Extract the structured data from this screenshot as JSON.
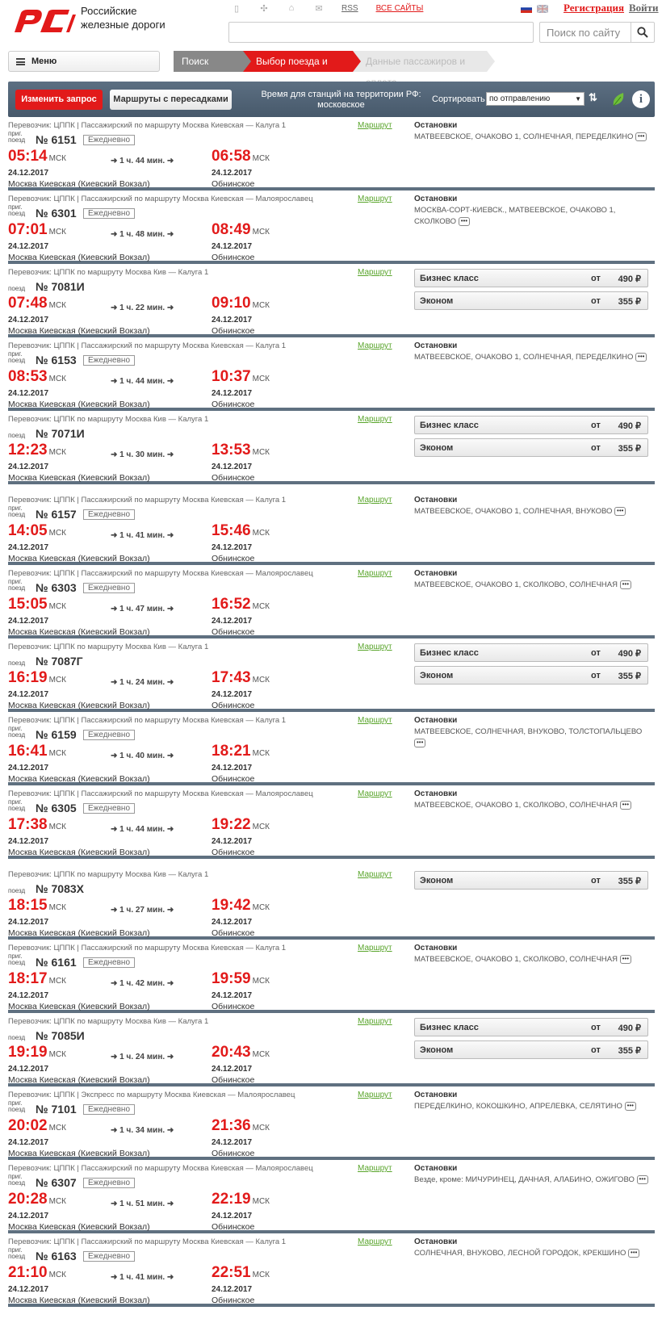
{
  "brand": {
    "line1": "Российские",
    "line2": "железные дороги"
  },
  "top": {
    "rss": "RSS",
    "all_sites": "ВСЕ САЙТЫ",
    "register": "Регистрация",
    "login": "Войти",
    "search_placeholder": "Поиск по сайту"
  },
  "menu": {
    "label": "Меню"
  },
  "steps": {
    "s1": "Поиск билета",
    "s2": "Выбор поезда и места",
    "s3": "Данные пассажиров и оплата"
  },
  "toolbar": {
    "change": "Изменить запрос",
    "transfers": "Маршруты с пересадками",
    "time_note": "Время для станций на территории РФ: московское",
    "sort_label": "Сортировать",
    "sort_value": "по отправлению"
  },
  "common": {
    "route_link": "Маршрут",
    "msk": "МСК",
    "daily": "Ежедневно",
    "stops": "Остановки",
    "from": "от",
    "prig": "приг.",
    "poezd": "поезд",
    "from_station": "Москва Киевская (Киевский Вокзал)",
    "to_station": "Обнинское",
    "date": "24.12.2017"
  },
  "trains": [
    {
      "carrier": "Перевозчик: ЦППК | Пассажирский   по маршруту Москва Киевская — Калуга 1",
      "num": "№ 6151",
      "prig": true,
      "daily": true,
      "dep": "05:14",
      "arr": "06:58",
      "dur": "1 ч. 44 мин.",
      "stops": "МАТВЕЕВСКОЕ, ОЧАКОВО 1, СОЛНЕЧНАЯ, ПЕРЕДЕЛКИНО"
    },
    {
      "carrier": "Перевозчик: ЦППК | Пассажирский   по маршруту Москва Киевская — Малоярославец",
      "num": "№ 6301",
      "prig": true,
      "daily": true,
      "dep": "07:01",
      "arr": "08:49",
      "dur": "1 ч. 48 мин.",
      "stops": "МОСКВА-СОРТ-КИЕВСК., МАТВЕЕВСКОЕ, ОЧАКОВО 1, СКОЛКОВО"
    },
    {
      "carrier": "Перевозчик: ЦППК   по маршруту Москва Кив — Калуга 1",
      "num": "№ 7081И",
      "prig": false,
      "daily": false,
      "dep": "07:48",
      "arr": "09:10",
      "dur": "1 ч. 22 мин.",
      "classes": [
        {
          "name": "Бизнес класс",
          "price": "490 ₽"
        },
        {
          "name": "Эконом",
          "price": "355 ₽"
        }
      ]
    },
    {
      "carrier": "Перевозчик: ЦППК | Пассажирский   по маршруту Москва Киевская — Калуга 1",
      "num": "№ 6153",
      "prig": true,
      "daily": true,
      "dep": "08:53",
      "arr": "10:37",
      "dur": "1 ч. 44 мин.",
      "stops": "МАТВЕЕВСКОЕ, ОЧАКОВО 1, СОЛНЕЧНАЯ, ПЕРЕДЕЛКИНО"
    },
    {
      "carrier": "Перевозчик: ЦППК   по маршруту Москва Кив — Калуга 1",
      "num": "№ 7071И",
      "prig": false,
      "daily": false,
      "dep": "12:23",
      "arr": "13:53",
      "dur": "1 ч. 30 мин.",
      "classes": [
        {
          "name": "Бизнес класс",
          "price": "490 ₽"
        },
        {
          "name": "Эконом",
          "price": "355 ₽"
        }
      ]
    },
    {
      "carrier": "Перевозчик: ЦППК | Пассажирский   по маршруту Москва Киевская — Калуга 1",
      "num": "№ 6157",
      "prig": true,
      "daily": true,
      "dep": "14:05",
      "arr": "15:46",
      "dur": "1 ч. 41 мин.",
      "stops": "МАТВЕЕВСКОЕ, ОЧАКОВО 1, СОЛНЕЧНАЯ, ВНУКОВО"
    },
    {
      "carrier": "Перевозчик: ЦППК | Пассажирский   по маршруту Москва Киевская — Малоярославец",
      "num": "№ 6303",
      "prig": true,
      "daily": true,
      "dep": "15:05",
      "arr": "16:52",
      "dur": "1 ч. 47 мин.",
      "stops": "МАТВЕЕВСКОЕ, ОЧАКОВО 1, СКОЛКОВО, СОЛНЕЧНАЯ"
    },
    {
      "carrier": "Перевозчик: ЦППК   по маршруту Москва Кив — Калуга 1",
      "num": "№ 7087Г",
      "prig": false,
      "daily": false,
      "dep": "16:19",
      "arr": "17:43",
      "dur": "1 ч. 24 мин.",
      "classes": [
        {
          "name": "Бизнес класс",
          "price": "490 ₽"
        },
        {
          "name": "Эконом",
          "price": "355 ₽"
        }
      ]
    },
    {
      "carrier": "Перевозчик: ЦППК | Пассажирский   по маршруту Москва Киевская — Калуга 1",
      "num": "№ 6159",
      "prig": true,
      "daily": true,
      "dep": "16:41",
      "arr": "18:21",
      "dur": "1 ч. 40 мин.",
      "stops": "МАТВЕЕВСКОЕ, СОЛНЕЧНАЯ, ВНУКОВО, ТОЛСТОПАЛЬЦЕВО"
    },
    {
      "carrier": "Перевозчик: ЦППК | Пассажирский   по маршруту Москва Киевская — Малоярославец",
      "num": "№ 6305",
      "prig": true,
      "daily": true,
      "dep": "17:38",
      "arr": "19:22",
      "dur": "1 ч. 44 мин.",
      "stops": "МАТВЕЕВСКОЕ, ОЧАКОВО 1, СКОЛКОВО, СОЛНЕЧНАЯ"
    },
    {
      "carrier": "Перевозчик: ЦППК   по маршруту Москва Кив — Калуга 1",
      "num": "№ 7083Х",
      "prig": false,
      "daily": false,
      "dep": "18:15",
      "arr": "19:42",
      "dur": "1 ч. 27 мин.",
      "classes": [
        {
          "name": "Эконом",
          "price": "355 ₽"
        }
      ]
    },
    {
      "carrier": "Перевозчик: ЦППК | Пассажирский   по маршруту Москва Киевская — Калуга 1",
      "num": "№ 6161",
      "prig": true,
      "daily": true,
      "dep": "18:17",
      "arr": "19:59",
      "dur": "1 ч. 42 мин.",
      "stops": "МАТВЕЕВСКОЕ, ОЧАКОВО 1, СКОЛКОВО, СОЛНЕЧНАЯ"
    },
    {
      "carrier": "Перевозчик: ЦППК   по маршруту Москва Кив — Калуга 1",
      "num": "№ 7085И",
      "prig": false,
      "daily": false,
      "dep": "19:19",
      "arr": "20:43",
      "dur": "1 ч. 24 мин.",
      "classes": [
        {
          "name": "Бизнес класс",
          "price": "490 ₽"
        },
        {
          "name": "Эконом",
          "price": "355 ₽"
        }
      ]
    },
    {
      "carrier": "Перевозчик: ЦППК | Экспресс   по маршруту Москва Киевская — Малоярославец",
      "num": "№ 7101",
      "prig": true,
      "daily": true,
      "dep": "20:02",
      "arr": "21:36",
      "dur": "1 ч. 34 мин.",
      "stops": "ПЕРЕДЕЛКИНО, КОКОШКИНО, АПРЕЛЕВКА, СЕЛЯТИНО"
    },
    {
      "carrier": "Перевозчик: ЦППК | Пассажирский   по маршруту Москва Киевская — Малоярославец",
      "num": "№ 6307",
      "prig": true,
      "daily": true,
      "dep": "20:28",
      "arr": "22:19",
      "dur": "1 ч. 51 мин.",
      "stops": "Везде, кроме: МИЧУРИНЕЦ, ДАЧНАЯ, АЛАБИНО, ОЖИГОВО"
    },
    {
      "carrier": "Перевозчик: ЦППК | Пассажирский   по маршруту Москва Киевская — Калуга 1",
      "num": "№ 6163",
      "prig": true,
      "daily": true,
      "dep": "21:10",
      "arr": "22:51",
      "dur": "1 ч. 41 мин.",
      "stops": "СОЛНЕЧНАЯ, ВНУКОВО, ЛЕСНОЙ ГОРОДОК, КРЕКШИНО"
    }
  ]
}
